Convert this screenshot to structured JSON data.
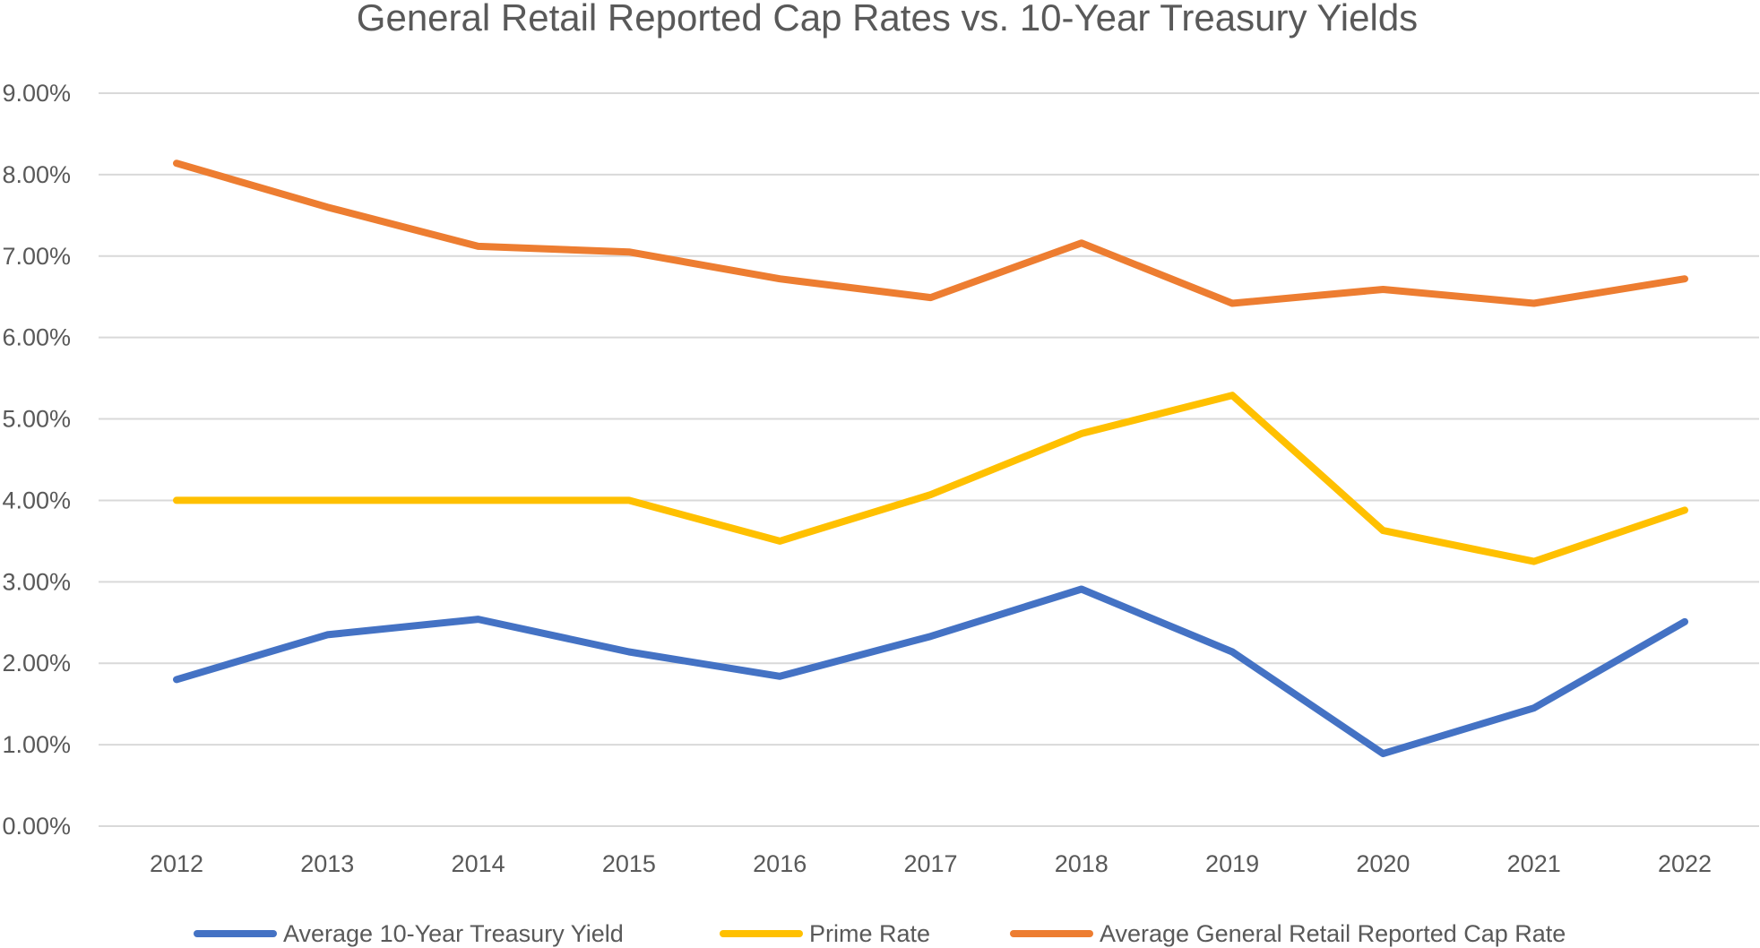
{
  "chart_data": {
    "type": "line",
    "title": "General Retail Reported Cap Rates vs. 10-Year Treasury Yields",
    "xlabel": "",
    "ylabel": "",
    "categories": [
      "2012",
      "2013",
      "2014",
      "2015",
      "2016",
      "2017",
      "2018",
      "2019",
      "2020",
      "2021",
      "2022"
    ],
    "ylim": [
      0,
      9
    ],
    "yticks": [
      0,
      1,
      2,
      3,
      4,
      5,
      6,
      7,
      8,
      9
    ],
    "ytick_labels": [
      "0.00%",
      "1.00%",
      "2.00%",
      "3.00%",
      "4.00%",
      "5.00%",
      "6.00%",
      "7.00%",
      "8.00%",
      "9.00%"
    ],
    "grid": true,
    "legend_position": "bottom",
    "series": [
      {
        "name": "Average 10-Year Treasury Yield",
        "color": "#4472c4",
        "values": [
          1.8,
          2.35,
          2.54,
          2.14,
          1.84,
          2.33,
          2.91,
          2.14,
          0.89,
          1.45,
          2.51
        ]
      },
      {
        "name": "Prime Rate",
        "color": "#ffc000",
        "values": [
          4.0,
          4.0,
          4.0,
          4.0,
          3.5,
          4.07,
          4.82,
          5.29,
          3.63,
          3.25,
          3.88
        ]
      },
      {
        "name": "Average General Retail Reported Cap Rate",
        "color": "#ed7d31",
        "values": [
          8.14,
          7.6,
          7.12,
          7.05,
          6.72,
          6.49,
          7.16,
          6.42,
          6.59,
          6.42,
          6.72
        ]
      }
    ]
  }
}
